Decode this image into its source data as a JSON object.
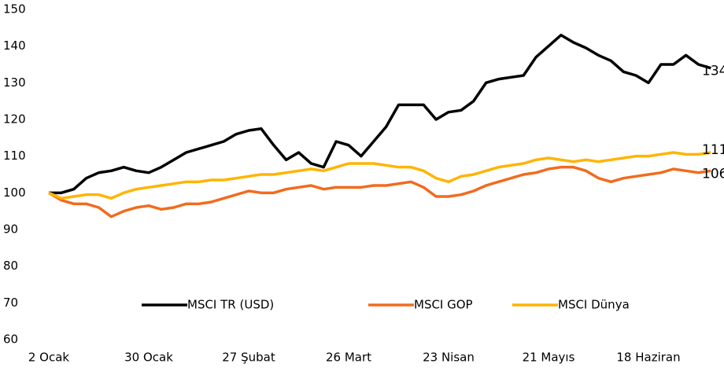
{
  "chart_data": {
    "type": "line",
    "categories": [
      "2 Ocak",
      null,
      null,
      null,
      null,
      null,
      null,
      null,
      "30 Ocak",
      null,
      null,
      null,
      null,
      null,
      null,
      null,
      "27 Şubat",
      null,
      null,
      null,
      null,
      null,
      null,
      null,
      "26 Mart",
      null,
      null,
      null,
      null,
      null,
      null,
      null,
      "23 Nisan",
      null,
      null,
      null,
      null,
      null,
      null,
      null,
      "21 Mayıs",
      null,
      null,
      null,
      null,
      null,
      null,
      null,
      "18 Haziran",
      null,
      null,
      null,
      null,
      null
    ],
    "series": [
      {
        "name": "MSCI TR (USD)",
        "color": "#000000",
        "values": [
          100,
          100,
          101,
          104,
          105.5,
          106,
          107,
          106,
          105.5,
          107,
          109,
          111,
          112,
          113,
          114,
          116,
          117,
          117.5,
          113,
          109,
          111,
          108,
          107,
          114,
          113,
          110,
          114,
          118,
          124,
          124,
          124,
          120,
          122,
          122.5,
          125,
          130,
          131,
          131.5,
          132,
          137,
          140,
          143,
          141,
          139.5,
          137.5,
          136,
          133,
          132,
          130,
          135,
          135,
          137.5,
          135,
          134
        ]
      },
      {
        "name": "MSCI GOP",
        "color": "#f26b1d",
        "values": [
          100,
          98,
          97,
          97,
          96,
          93.5,
          95,
          96,
          96.5,
          95.5,
          96,
          97,
          97,
          97.5,
          98.5,
          99.5,
          100.5,
          100,
          100,
          101,
          101.5,
          102,
          101,
          101.5,
          101.5,
          101.5,
          102,
          102,
          102.5,
          103,
          101.5,
          99,
          99,
          99.5,
          100.5,
          102,
          103,
          104,
          105,
          105.5,
          106.5,
          107,
          107,
          106,
          104,
          103,
          104,
          104.5,
          105,
          105.5,
          106.5,
          106,
          105.5,
          106
        ]
      },
      {
        "name": "MSCI Dünya",
        "color": "#ffb400",
        "values": [
          100,
          98.5,
          99,
          99.5,
          99.5,
          98.5,
          100,
          101,
          101.5,
          102,
          102.5,
          103,
          103,
          103.5,
          103.5,
          104,
          104.5,
          105,
          105,
          105.5,
          106,
          106.5,
          106,
          107,
          108,
          108,
          108,
          107.5,
          107,
          107,
          106,
          104,
          103,
          104.5,
          105,
          106,
          107,
          107.5,
          108,
          109,
          109.5,
          109,
          108.5,
          109,
          108.5,
          109,
          109.5,
          110,
          110,
          110.5,
          111,
          110.5,
          110.5,
          111
        ]
      }
    ],
    "ylim": [
      60,
      150
    ],
    "yticks": [
      60,
      70,
      80,
      90,
      100,
      110,
      120,
      130,
      140,
      150
    ],
    "grid": false,
    "legend": "bottom"
  }
}
